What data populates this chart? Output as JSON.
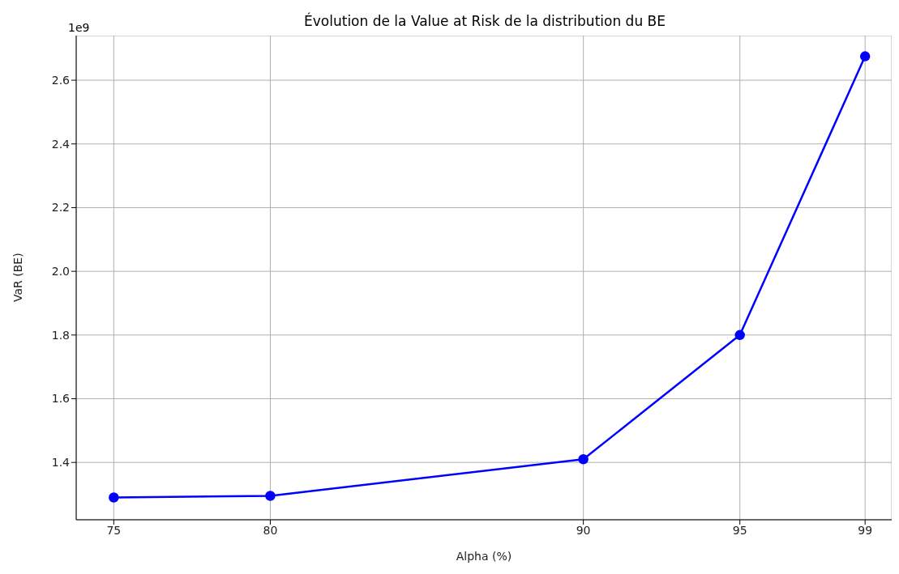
{
  "chart_data": {
    "type": "line",
    "title": "Évolution de la Value at Risk de la distribution du BE",
    "xlabel": "Alpha (%)",
    "ylabel": "VaR (BE)",
    "annotations": [
      "1e9"
    ],
    "x": [
      75,
      80,
      90,
      95,
      99
    ],
    "series": [
      {
        "color": "#0000ff",
        "values": [
          1.29,
          1.295,
          1.41,
          1.8,
          2.675
        ]
      }
    ],
    "xlim": [
      73.8,
      99.85
    ],
    "xticks": [
      75,
      80,
      90,
      95,
      99
    ],
    "ylim": [
      1.22,
      2.74
    ],
    "yticks": [
      1.4,
      1.6,
      1.8,
      {
        "value": 2,
        "label": "2.0"
      },
      2.2,
      2.4,
      2.6
    ],
    "grid": true,
    "marker": "circle",
    "line_style": "solid"
  }
}
